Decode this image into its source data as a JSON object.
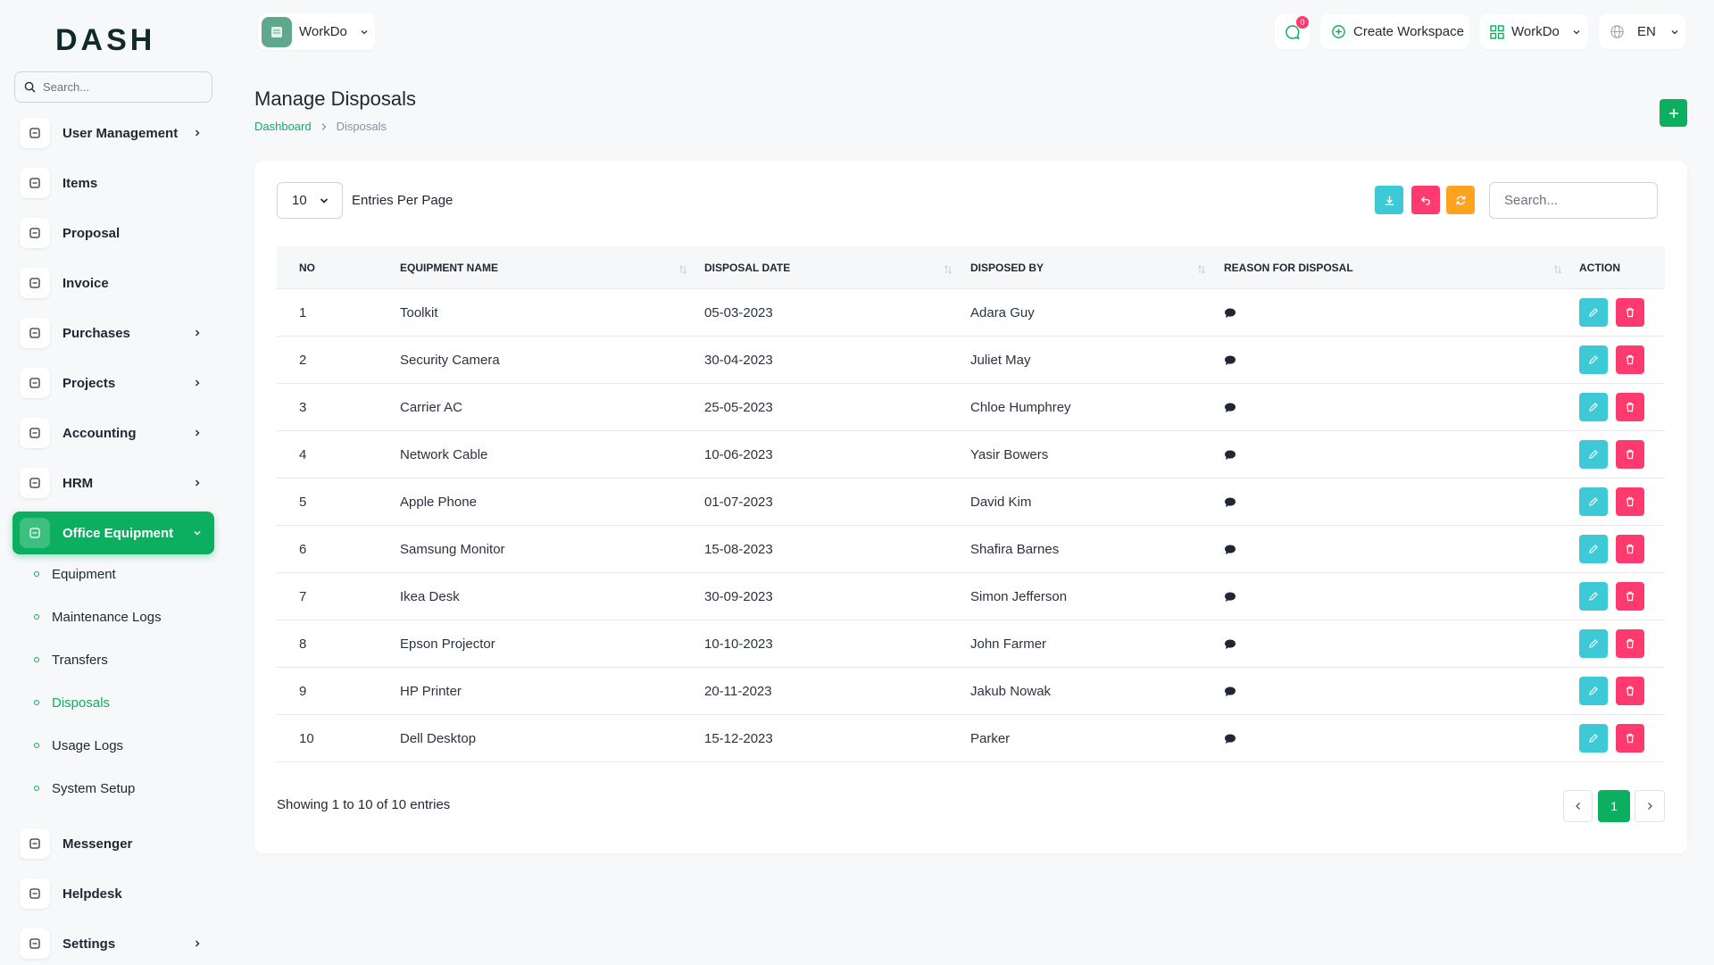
{
  "sidebar": {
    "logo": "DASH",
    "search_placeholder": "Search...",
    "menu": [
      {
        "label": "User Management",
        "expandable": true
      },
      {
        "label": "Items"
      },
      {
        "label": "Proposal"
      },
      {
        "label": "Invoice"
      },
      {
        "label": "Purchases",
        "expandable": true
      },
      {
        "label": "Projects",
        "expandable": true
      },
      {
        "label": "Accounting",
        "expandable": true
      },
      {
        "label": "HRM",
        "expandable": true
      },
      {
        "label": "Office Equipment",
        "expandable": true,
        "active": true,
        "children": [
          {
            "label": "Equipment"
          },
          {
            "label": "Maintenance Logs"
          },
          {
            "label": "Transfers"
          },
          {
            "label": "Disposals",
            "active": true
          },
          {
            "label": "Usage Logs"
          },
          {
            "label": "System Setup"
          }
        ]
      },
      {
        "label": "Messenger"
      },
      {
        "label": "Helpdesk"
      },
      {
        "label": "Settings",
        "expandable": true
      }
    ]
  },
  "header": {
    "workspace": "WorkDo",
    "notifications": 0,
    "create_workspace": "Create Workspace",
    "user": "WorkDo",
    "language": "EN"
  },
  "page": {
    "title": "Manage Disposals",
    "breadcrumb": [
      "Dashboard",
      "Disposals"
    ]
  },
  "table": {
    "page_size": 10,
    "page_size_label": "Entries Per Page",
    "search_placeholder": "Search...",
    "columns": [
      "NO",
      "EQUIPMENT NAME",
      "DISPOSAL DATE",
      "DISPOSED BY",
      "REASON FOR DISPOSAL",
      "ACTION"
    ],
    "rows": [
      [
        1,
        "Toolkit",
        "05-03-2023",
        "Adara Guy"
      ],
      [
        2,
        "Security Camera",
        "30-04-2023",
        "Juliet May"
      ],
      [
        3,
        "Carrier AC",
        "25-05-2023",
        "Chloe Humphrey"
      ],
      [
        4,
        "Network Cable",
        "10-06-2023",
        "Yasir Bowers"
      ],
      [
        5,
        "Apple Phone",
        "01-07-2023",
        "David Kim"
      ],
      [
        6,
        "Samsung Monitor",
        "15-08-2023",
        "Shafira Barnes"
      ],
      [
        7,
        "Ikea Desk",
        "30-09-2023",
        "Simon Jefferson"
      ],
      [
        8,
        "Epson Projector",
        "10-10-2023",
        "John Farmer"
      ],
      [
        9,
        "HP Printer",
        "20-11-2023",
        "Jakub Nowak"
      ],
      [
        10,
        "Dell Desktop",
        "15-12-2023",
        "Parker"
      ]
    ],
    "summary": "Showing 1 to 10 of 10 entries",
    "current_page": 1
  }
}
